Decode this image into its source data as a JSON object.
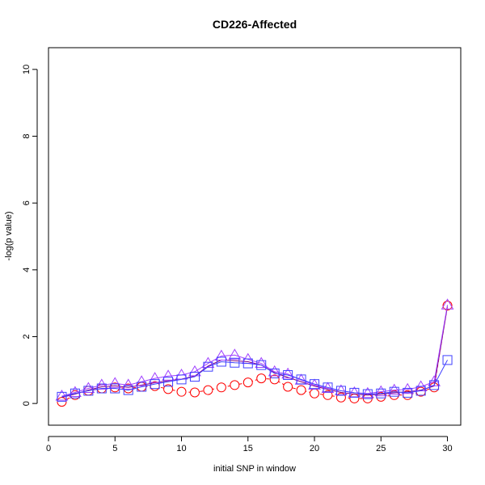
{
  "chart_data": {
    "type": "line",
    "title": "CD226-Affected",
    "xlabel": "initial SNP in window",
    "ylabel": "-log(p value)",
    "xlim": [
      0,
      31
    ],
    "ylim": [
      -0.65,
      10.65
    ],
    "xticks": [
      0,
      5,
      10,
      15,
      20,
      25,
      30
    ],
    "yticks": [
      0,
      2,
      4,
      6,
      8,
      10
    ],
    "grid": false,
    "x": [
      1,
      2,
      3,
      4,
      5,
      6,
      7,
      8,
      9,
      10,
      11,
      12,
      13,
      14,
      15,
      16,
      17,
      18,
      19,
      20,
      21,
      22,
      23,
      24,
      25,
      26,
      27,
      28,
      29,
      30
    ],
    "series": [
      {
        "color": "#ff0000",
        "marker": "circle",
        "line": "dashed",
        "values": [
          0.05,
          0.25,
          0.38,
          0.45,
          0.48,
          0.45,
          0.5,
          0.52,
          0.43,
          0.35,
          0.33,
          0.4,
          0.48,
          0.55,
          0.63,
          0.75,
          0.72,
          0.5,
          0.4,
          0.3,
          0.25,
          0.18,
          0.15,
          0.15,
          0.2,
          0.25,
          0.25,
          0.35,
          0.48,
          2.93
        ]
      },
      {
        "color": "#800080",
        "marker": "none",
        "line": "solid",
        "values": [
          0.18,
          0.28,
          0.4,
          0.5,
          0.53,
          0.48,
          0.55,
          0.62,
          0.68,
          0.73,
          0.82,
          1.12,
          1.3,
          1.28,
          1.25,
          1.15,
          0.92,
          0.78,
          0.65,
          0.52,
          0.42,
          0.33,
          0.28,
          0.25,
          0.28,
          0.32,
          0.35,
          0.4,
          0.52,
          2.9
        ]
      },
      {
        "color": "#a040ff",
        "marker": "triangle",
        "line": "solid",
        "values": [
          0.22,
          0.33,
          0.45,
          0.55,
          0.6,
          0.55,
          0.65,
          0.75,
          0.82,
          0.85,
          0.95,
          1.2,
          1.42,
          1.45,
          1.32,
          1.2,
          0.95,
          0.88,
          0.7,
          0.55,
          0.45,
          0.38,
          0.32,
          0.3,
          0.35,
          0.4,
          0.42,
          0.5,
          0.65,
          2.95
        ]
      },
      {
        "color": "#4040ff",
        "marker": "square",
        "line": "solid",
        "values": [
          0.2,
          0.3,
          0.38,
          0.45,
          0.45,
          0.4,
          0.5,
          0.58,
          0.65,
          0.72,
          0.8,
          1.1,
          1.25,
          1.22,
          1.2,
          1.15,
          0.9,
          0.85,
          0.72,
          0.58,
          0.48,
          0.38,
          0.32,
          0.28,
          0.3,
          0.35,
          0.32,
          0.38,
          0.55,
          1.3
        ]
      }
    ]
  }
}
